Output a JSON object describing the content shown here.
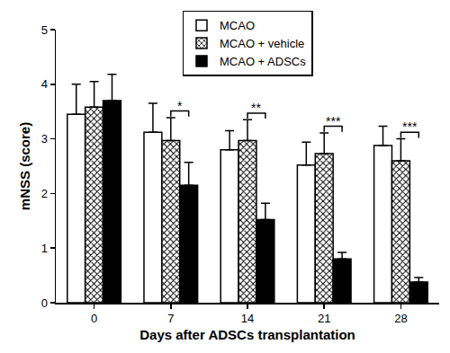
{
  "chart_data": {
    "type": "bar",
    "x_label": "Days after ADSCs transplantation",
    "y_label": "mNSS (score)",
    "categories": [
      "0",
      "7",
      "14",
      "21",
      "28"
    ],
    "series": [
      {
        "name": "MCAO",
        "color": "#ffffff",
        "values": [
          3.45,
          3.12,
          2.8,
          2.52,
          2.88
        ],
        "errors": [
          0.55,
          0.53,
          0.35,
          0.42,
          0.35
        ]
      },
      {
        "name": "MCAO + vehicle",
        "color": "#ffffff",
        "marker": "checkered",
        "values": [
          3.58,
          2.97,
          2.97,
          2.73,
          2.6
        ],
        "errors": [
          0.47,
          0.42,
          0.38,
          0.38,
          0.4
        ]
      },
      {
        "name": "MCAO + ADSCs",
        "color": "#000000",
        "values": [
          3.7,
          2.15,
          1.52,
          0.8,
          0.38
        ],
        "errors": [
          0.48,
          0.42,
          0.3,
          0.12,
          0.08
        ]
      }
    ],
    "annotations": [
      {
        "category": "7",
        "text": "*"
      },
      {
        "category": "14",
        "text": "**"
      },
      {
        "category": "21",
        "text": "***"
      },
      {
        "category": "28",
        "text": "***"
      }
    ],
    "ylim": [
      0,
      5
    ],
    "yticks": [
      0,
      1,
      2,
      3,
      4,
      5
    ],
    "grid": false,
    "legend": "top"
  }
}
